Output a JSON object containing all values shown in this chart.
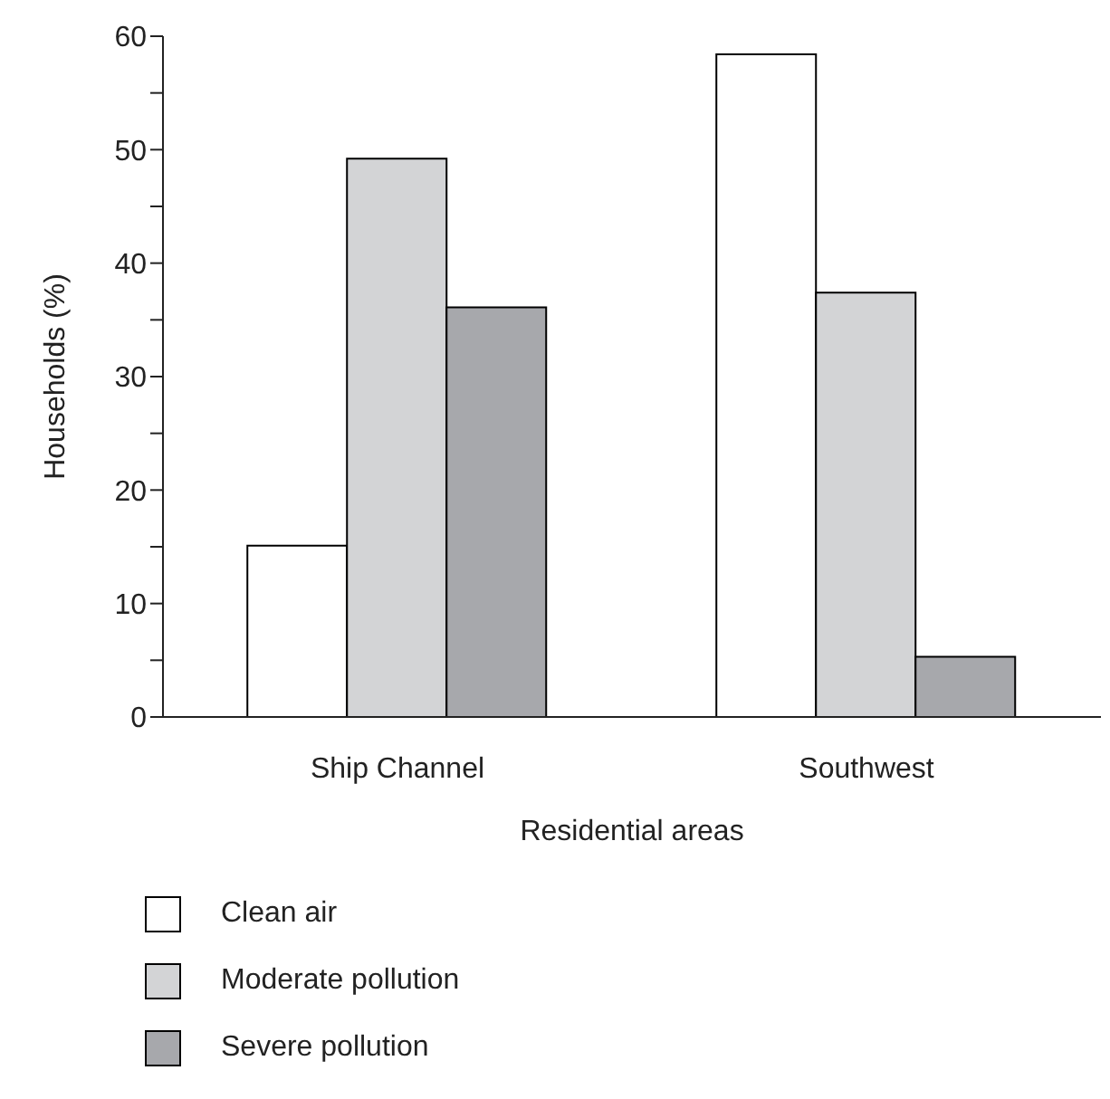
{
  "chart_data": {
    "type": "bar",
    "xlabel": "Residential areas",
    "ylabel": "Households (%)",
    "categories": [
      "Ship Channel",
      "Southwest"
    ],
    "series": [
      {
        "name": "Clean air",
        "color": "#ffffff",
        "values": [
          15.1,
          58.4
        ]
      },
      {
        "name": "Moderate pollution",
        "color": "#d3d4d6",
        "values": [
          49.2,
          37.4
        ]
      },
      {
        "name": "Severe pollution",
        "color": "#a7a8ac",
        "values": [
          36.1,
          5.3
        ]
      }
    ],
    "ylim": [
      0,
      60
    ],
    "yticks": [
      0,
      {
        "value": 5,
        "label": null
      },
      10,
      {
        "value": 15,
        "label": null
      },
      20,
      {
        "value": 25,
        "label": null
      },
      30,
      {
        "value": 35,
        "label": null
      },
      40,
      {
        "value": 45,
        "label": null
      },
      50,
      {
        "value": 55,
        "label": null
      },
      60
    ],
    "grid": false,
    "legend": "bottom"
  }
}
